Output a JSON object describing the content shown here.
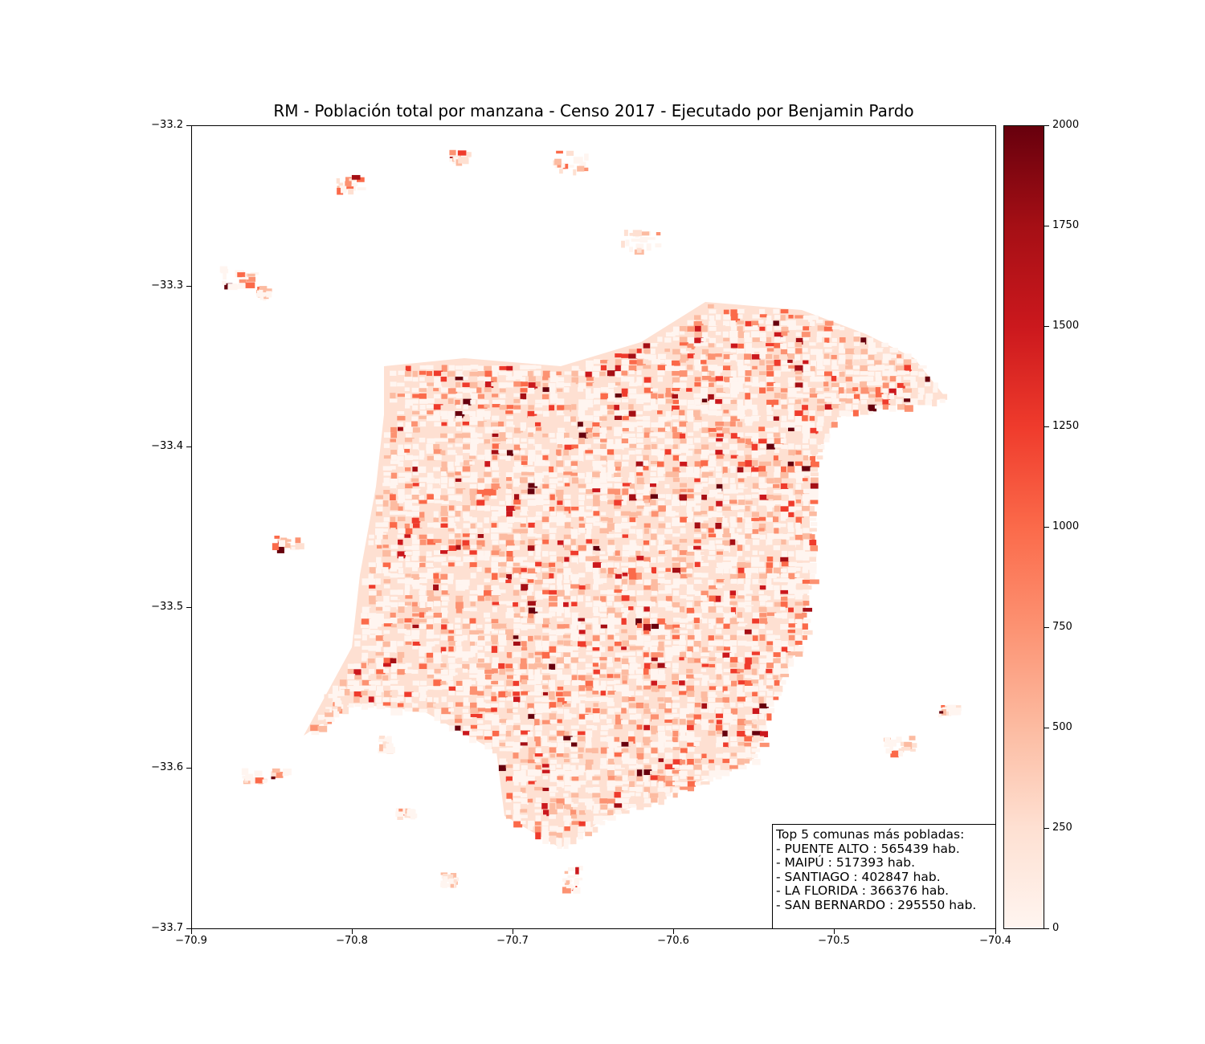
{
  "title": "RM - Población total por manzana - Censo 2017 - Ejecutado por Benjamin Pardo",
  "x_axis": {
    "range": [
      -70.9,
      -70.4
    ],
    "ticks": [
      "−70.9",
      "−70.8",
      "−70.7",
      "−70.6",
      "−70.5",
      "−70.4"
    ]
  },
  "y_axis": {
    "range": [
      -33.7,
      -33.2
    ],
    "ticks": [
      "−33.2",
      "−33.3",
      "−33.4",
      "−33.5",
      "−33.6",
      "−33.7"
    ]
  },
  "colorbar": {
    "colormap": "Reds",
    "range": [
      0,
      2000
    ],
    "ticks": [
      "2000",
      "1750",
      "1500",
      "1250",
      "1000",
      "750",
      "500",
      "250",
      "0"
    ],
    "colors": [
      "#fff5f0",
      "#fee0d2",
      "#fcbba1",
      "#fc9272",
      "#fb6a4a",
      "#ef3b2c",
      "#cb181d",
      "#a50f15",
      "#67000d"
    ]
  },
  "legend": {
    "heading": "Top 5 comunas más pobladas:",
    "lines": [
      "- PUENTE ALTO : 565439 hab.",
      "- MAIPÚ : 517393 hab.",
      "- SANTIAGO : 402847 hab.",
      "- LA FLORIDA : 366376 hab.",
      "- SAN BERNARDO : 295550 hab."
    ]
  }
}
